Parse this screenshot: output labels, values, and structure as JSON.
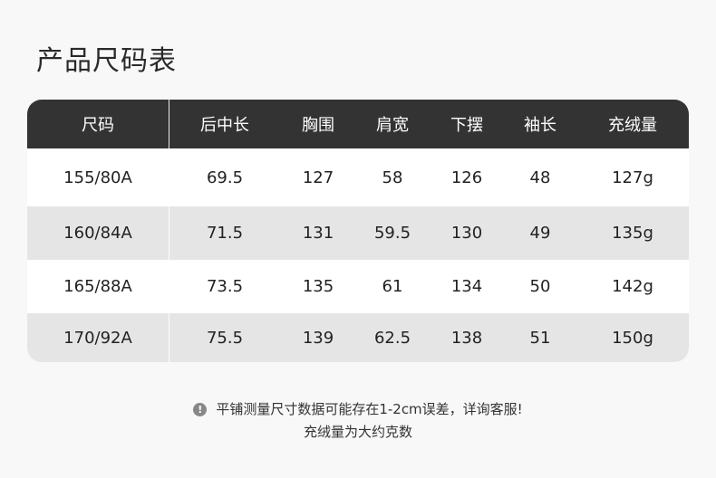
{
  "title": "产品尺码表",
  "table": {
    "headers": [
      "尺码",
      "后中长",
      "胸围",
      "肩宽",
      "下摆",
      "袖长",
      "充绒量"
    ],
    "rows": [
      [
        "155/80A",
        "69.5",
        "127",
        "58",
        "126",
        "48",
        "127g"
      ],
      [
        "160/84A",
        "71.5",
        "131",
        "59.5",
        "130",
        "49",
        "135g"
      ],
      [
        "165/88A",
        "73.5",
        "135",
        "61",
        "134",
        "50",
        "142g"
      ],
      [
        "170/92A",
        "75.5",
        "139",
        "62.5",
        "138",
        "51",
        "150g"
      ]
    ]
  },
  "notes": {
    "line1": "平铺测量尺寸数据可能存在1-2cm误差，详询客服!",
    "line2": "充绒量为大约克数",
    "icon": "exclamation-circle-icon"
  },
  "colors": {
    "header_bg": "#333333",
    "stripe": "#e5e5e5"
  }
}
